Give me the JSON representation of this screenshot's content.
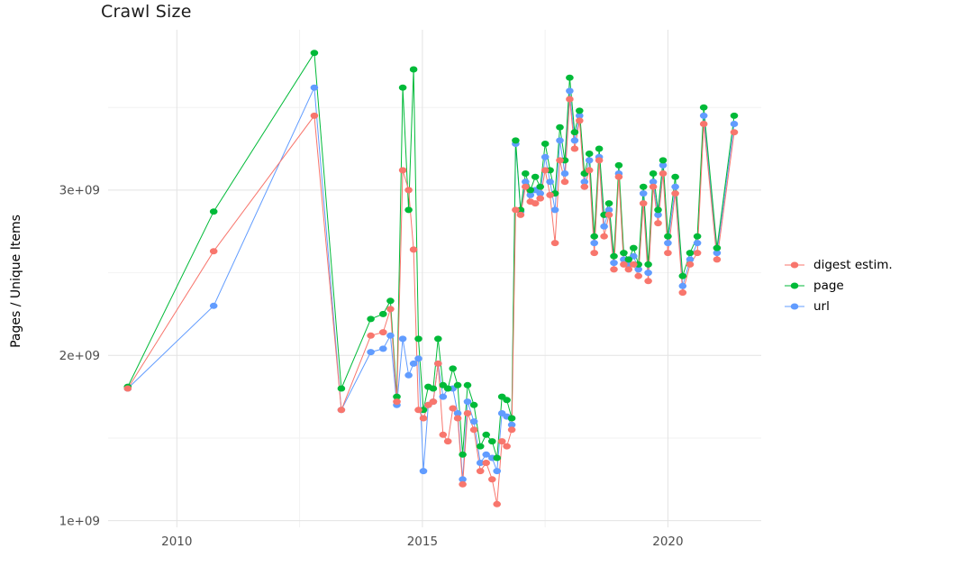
{
  "chart_data": {
    "type": "line",
    "title": "Crawl Size",
    "xlabel": "",
    "ylabel": "Pages / Unique Items",
    "legend_position": "right",
    "grid": true,
    "background": "#ffffff",
    "grid_major_color": "#e3e3e3",
    "grid_minor_color": "#f2f2f2",
    "axis_text_color": "#4d4d4d",
    "value_unit": "1e9",
    "unit_multiplier": 1000000000,
    "xlim": [
      2008.6,
      2021.9
    ],
    "ylim": [
      0.96,
      3.97
    ],
    "x_ticks": [
      2010,
      2015,
      2020
    ],
    "x_tick_labels": [
      "2010",
      "2015",
      "2020"
    ],
    "x_minor_ticks": [
      2012.5,
      2017.5
    ],
    "y_ticks": [
      1,
      2,
      3
    ],
    "y_tick_labels": [
      "1e+09",
      "2e+09",
      "3e+09"
    ],
    "y_minor_ticks": [
      1.5,
      2.5,
      3.5
    ],
    "x": [
      2009.0,
      2010.75,
      2012.8,
      2013.35,
      2013.95,
      2014.2,
      2014.35,
      2014.48,
      2014.6,
      2014.72,
      2014.82,
      2014.92,
      2015.02,
      2015.12,
      2015.22,
      2015.32,
      2015.42,
      2015.52,
      2015.62,
      2015.72,
      2015.82,
      2015.92,
      2016.05,
      2016.18,
      2016.3,
      2016.42,
      2016.52,
      2016.62,
      2016.72,
      2016.82,
      2016.9,
      2017.0,
      2017.1,
      2017.2,
      2017.3,
      2017.4,
      2017.5,
      2017.6,
      2017.7,
      2017.8,
      2017.9,
      2018.0,
      2018.1,
      2018.2,
      2018.3,
      2018.4,
      2018.5,
      2018.6,
      2018.7,
      2018.8,
      2018.9,
      2019.0,
      2019.1,
      2019.2,
      2019.3,
      2019.4,
      2019.5,
      2019.6,
      2019.7,
      2019.8,
      2019.9,
      2020.0,
      2020.15,
      2020.3,
      2020.45,
      2020.6,
      2020.73,
      2021.0,
      2021.35
    ],
    "series": [
      {
        "name": "digest estim.",
        "color": "#F8766D",
        "values": [
          1.8,
          2.63,
          3.45,
          1.67,
          2.12,
          2.14,
          2.28,
          1.72,
          3.12,
          3.0,
          2.64,
          1.67,
          1.62,
          1.7,
          1.72,
          1.95,
          1.52,
          1.48,
          1.68,
          1.62,
          1.22,
          1.65,
          1.55,
          1.3,
          1.35,
          1.25,
          1.1,
          1.48,
          1.45,
          1.55,
          2.88,
          2.85,
          3.02,
          2.93,
          2.92,
          2.95,
          3.12,
          2.97,
          2.68,
          3.18,
          3.05,
          3.55,
          3.25,
          3.42,
          3.02,
          3.12,
          2.62,
          3.18,
          2.72,
          2.85,
          2.52,
          3.08,
          2.55,
          2.52,
          2.55,
          2.48,
          2.92,
          2.45,
          3.02,
          2.8,
          3.1,
          2.62,
          2.98,
          2.38,
          2.55,
          2.62,
          3.4,
          2.58,
          3.35
        ]
      },
      {
        "name": "page",
        "color": "#00BA38",
        "values": [
          1.81,
          2.87,
          3.83,
          1.8,
          2.22,
          2.25,
          2.33,
          1.75,
          3.62,
          2.88,
          3.73,
          2.1,
          1.67,
          1.81,
          1.8,
          2.1,
          1.82,
          1.8,
          1.92,
          1.82,
          1.4,
          1.82,
          1.7,
          1.45,
          1.52,
          1.48,
          1.38,
          1.75,
          1.73,
          1.62,
          3.3,
          2.88,
          3.1,
          3.0,
          3.08,
          3.02,
          3.28,
          3.12,
          2.98,
          3.38,
          3.18,
          3.68,
          3.35,
          3.48,
          3.1,
          3.22,
          2.72,
          3.25,
          2.85,
          2.92,
          2.6,
          3.15,
          2.62,
          2.58,
          2.65,
          2.55,
          3.02,
          2.55,
          3.1,
          2.88,
          3.18,
          2.72,
          3.08,
          2.48,
          2.62,
          2.72,
          3.5,
          2.65,
          3.45
        ]
      },
      {
        "name": "url",
        "color": "#619CFF",
        "values": [
          1.8,
          2.3,
          3.62,
          1.67,
          2.02,
          2.04,
          2.12,
          1.7,
          2.1,
          1.88,
          1.95,
          1.98,
          1.3,
          1.7,
          1.72,
          1.95,
          1.75,
          1.8,
          1.8,
          1.65,
          1.25,
          1.72,
          1.6,
          1.35,
          1.4,
          1.38,
          1.3,
          1.65,
          1.63,
          1.58,
          3.28,
          2.87,
          3.05,
          2.97,
          3.0,
          2.98,
          3.2,
          3.05,
          2.88,
          3.3,
          3.1,
          3.6,
          3.3,
          3.45,
          3.05,
          3.18,
          2.68,
          3.2,
          2.78,
          2.88,
          2.56,
          3.1,
          2.58,
          2.55,
          2.6,
          2.52,
          2.98,
          2.5,
          3.05,
          2.85,
          3.15,
          2.68,
          3.02,
          2.42,
          2.58,
          2.68,
          3.45,
          2.62,
          3.4
        ]
      }
    ]
  }
}
